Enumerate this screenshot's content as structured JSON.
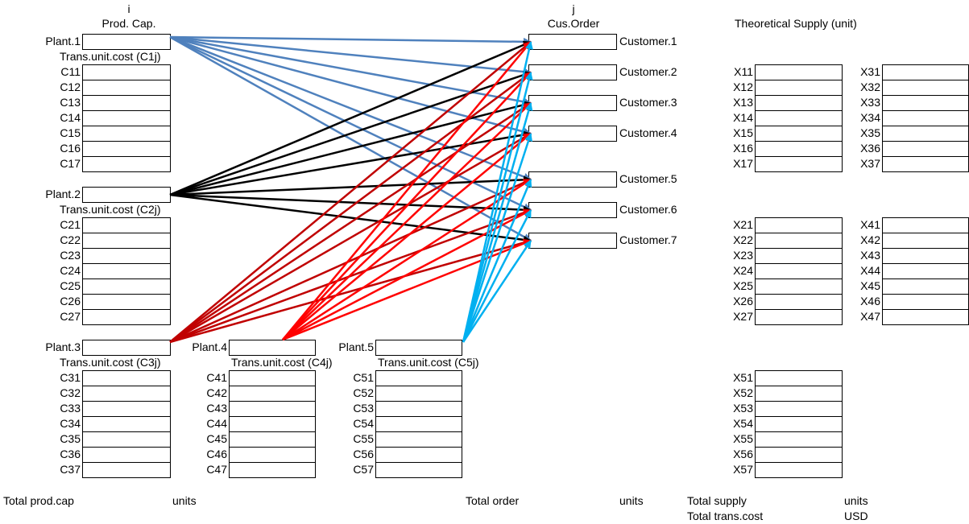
{
  "headers": {
    "i": "i",
    "prod_cap": "Prod. Cap.",
    "j": "j",
    "cus_order": "Cus.Order",
    "theoretical_supply": "Theoretical Supply (unit)"
  },
  "plants": [
    {
      "name": "Plant.1",
      "cost_label": "Trans.unit.cost (C1j)",
      "costs": [
        "C11",
        "C12",
        "C13",
        "C14",
        "C15",
        "C16",
        "C17"
      ]
    },
    {
      "name": "Plant.2",
      "cost_label": "Trans.unit.cost (C2j)",
      "costs": [
        "C21",
        "C22",
        "C23",
        "C24",
        "C25",
        "C26",
        "C27"
      ]
    },
    {
      "name": "Plant.3",
      "cost_label": "Trans.unit.cost (C3j)",
      "costs": [
        "C31",
        "C32",
        "C33",
        "C34",
        "C35",
        "C36",
        "C37"
      ]
    },
    {
      "name": "Plant.4",
      "cost_label": "Trans.unit.cost (C4j)",
      "costs": [
        "C41",
        "C42",
        "C43",
        "C44",
        "C45",
        "C46",
        "C47"
      ]
    },
    {
      "name": "Plant.5",
      "cost_label": "Trans.unit.cost (C5j)",
      "costs": [
        "C51",
        "C52",
        "C53",
        "C54",
        "C55",
        "C56",
        "C57"
      ]
    }
  ],
  "customers": [
    "Customer.1",
    "Customer.2",
    "Customer.3",
    "Customer.4",
    "Customer.5",
    "Customer.6",
    "Customer.7"
  ],
  "supply_vars": {
    "x1": [
      "X11",
      "X12",
      "X13",
      "X14",
      "X15",
      "X16",
      "X17"
    ],
    "x2": [
      "X21",
      "X22",
      "X23",
      "X24",
      "X25",
      "X26",
      "X27"
    ],
    "x3": [
      "X31",
      "X32",
      "X33",
      "X34",
      "X35",
      "X36",
      "X37"
    ],
    "x4": [
      "X41",
      "X42",
      "X43",
      "X44",
      "X45",
      "X46",
      "X47"
    ],
    "x5": [
      "X51",
      "X52",
      "X53",
      "X54",
      "X55",
      "X56",
      "X57"
    ]
  },
  "footer": {
    "total_prod_cap": "Total prod.cap",
    "units_1": "units",
    "total_order": "Total order",
    "units_2": "units",
    "total_supply": "Total supply",
    "units_3": "units",
    "total_trans_cost": "Total trans.cost",
    "usd": "USD"
  },
  "colors": {
    "plant1_arrows": "#4f81bd",
    "plant2_arrows": "#000000",
    "plant3_arrows": "#c00000",
    "plant4_arrows": "#ff0000",
    "plant5_arrows": "#00b0f0"
  }
}
